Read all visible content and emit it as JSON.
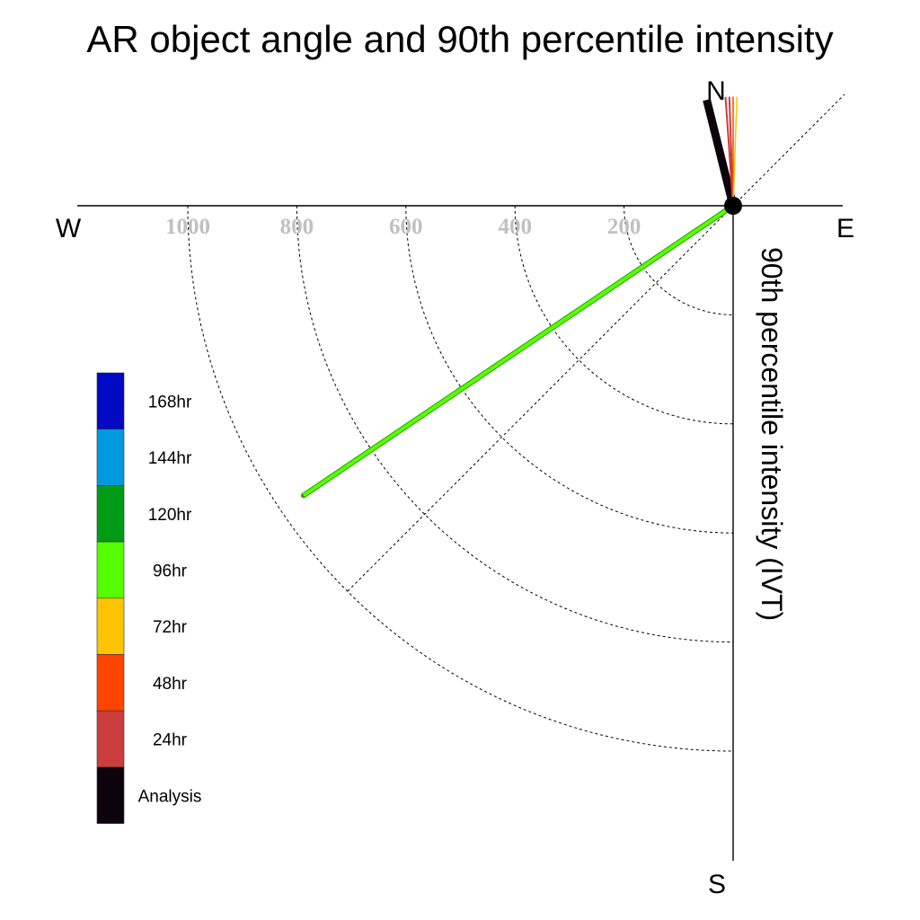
{
  "chart_data": {
    "type": "polar-vector",
    "title": "AR object angle and 90th percentile intensity",
    "side_label": "90th percentile intensity (IVT)",
    "compass": {
      "north": "N",
      "south": "S",
      "east": "E",
      "west": "W"
    },
    "rings": [
      {
        "value": 200,
        "label": "200"
      },
      {
        "value": 400,
        "label": "400"
      },
      {
        "value": 600,
        "label": "600"
      },
      {
        "value": 800,
        "label": "800"
      },
      {
        "value": 1000,
        "label": "1000"
      }
    ],
    "legend": [
      {
        "label": "168hr",
        "color": "#0009c4"
      },
      {
        "label": "144hr",
        "color": "#0099de"
      },
      {
        "label": "120hr",
        "color": "#009c18"
      },
      {
        "label": "96hr",
        "color": "#55ff00"
      },
      {
        "label": "72hr",
        "color": "#ffc400"
      },
      {
        "label": "48hr",
        "color": "#ff4400"
      },
      {
        "label": "24hr",
        "color": "#cc3d3d"
      },
      {
        "label": "Analysis",
        "color": "#0d030c"
      }
    ],
    "series": [
      {
        "lead": "Analysis",
        "color": "#0d030c",
        "bearing_deg": 346,
        "intensity": 200,
        "width": 9
      },
      {
        "lead": "24hr",
        "color": "#cc3d3d",
        "bearing_deg": 356,
        "intensity": 200,
        "width": 2
      },
      {
        "lead": "24hr",
        "color": "#cc3d3d",
        "bearing_deg": 358,
        "intensity": 200,
        "width": 2
      },
      {
        "lead": "48hr",
        "color": "#ff4400",
        "bearing_deg": 0,
        "intensity": 200,
        "width": 1.5
      },
      {
        "lead": "72hr",
        "color": "#ffc400",
        "bearing_deg": 2,
        "intensity": 200,
        "width": 1.5
      },
      {
        "lead": "96hr",
        "color": "#55ff00",
        "bearing_deg": 236,
        "intensity": 950,
        "width": 4
      }
    ]
  }
}
